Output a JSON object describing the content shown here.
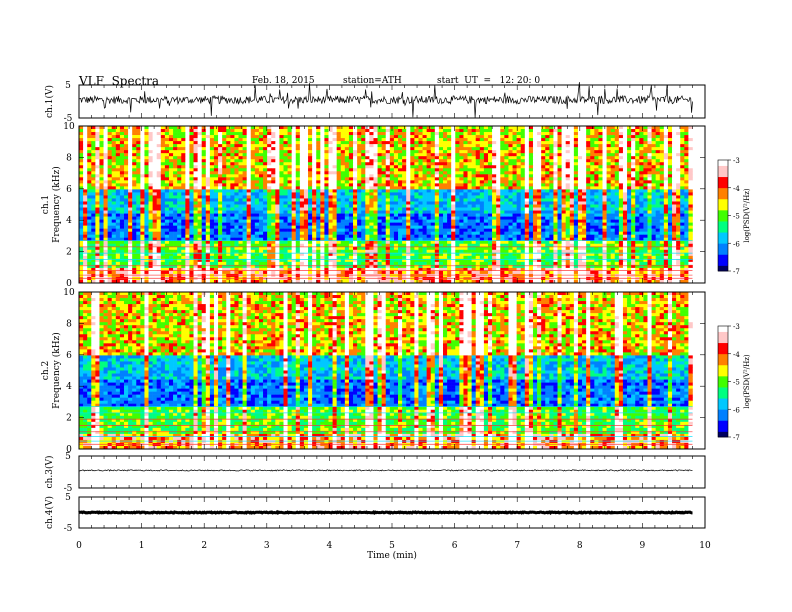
{
  "header": {
    "title": "VLF  Spectra",
    "date": "Feb. 18, 2015",
    "station": "station=ATH",
    "start": "start  UT  =   12: 20: 0"
  },
  "colors": {
    "spectrogram_scale": [
      "#000060",
      "#0000ff",
      "#0080ff",
      "#00c8ff",
      "#00ff80",
      "#40ff00",
      "#ffff00",
      "#ff8000",
      "#ff0000",
      "#ffc8c8",
      "#ffffff"
    ],
    "trace": "#000000"
  },
  "chart_data": [
    {
      "type": "line",
      "name": "ch.1",
      "ylabel": "ch.1(V)",
      "ylim": [
        -5,
        5
      ],
      "yticks": [
        "5",
        "-5"
      ],
      "description_values": {
        "x": [
          0,
          9.8
        ],
        "baseline": 0.5,
        "noise_amplitude": 1.2
      }
    },
    {
      "type": "heatmap",
      "name": "ch.1",
      "ylabel_top": "ch.1",
      "ylabel": "Frequency  (kHz)",
      "ylim": [
        0,
        10
      ],
      "yticks": [
        "0",
        "2",
        "4",
        "6",
        "8",
        "10"
      ],
      "x": [
        0,
        9.8
      ],
      "colorbar": {
        "label": "log(PSD(V²/Hz)",
        "range": [
          -7,
          -3
        ],
        "ticks": [
          "-3",
          "-4",
          "-5",
          "-6",
          "-7"
        ]
      }
    },
    {
      "type": "heatmap",
      "name": "ch.2",
      "ylabel_top": "ch.2",
      "ylabel": "Frequency  (kHz)",
      "ylim": [
        0,
        10
      ],
      "yticks": [
        "0",
        "2",
        "4",
        "6",
        "8",
        "10"
      ],
      "x": [
        0,
        9.8
      ],
      "colorbar": {
        "label": "log(PSD(V²/Hz)",
        "range": [
          -7,
          -3
        ],
        "ticks": [
          "-3",
          "-4",
          "-5",
          "-6",
          "-7"
        ]
      }
    },
    {
      "type": "line",
      "name": "ch.3",
      "ylabel": "ch.3(V)",
      "ylim": [
        -5,
        5
      ],
      "yticks": [
        "5",
        "-5"
      ],
      "description_values": {
        "x": [
          0,
          9.8
        ],
        "baseline": 0.5,
        "noise_amplitude": 0.2
      }
    },
    {
      "type": "line",
      "name": "ch.4",
      "ylabel": "ch.4(V)",
      "ylim": [
        -5,
        5
      ],
      "yticks": [
        "5",
        "-5"
      ],
      "description_values": {
        "x": [
          0,
          9.8
        ],
        "baseline": 0.0,
        "noise_amplitude": 0.15
      }
    }
  ],
  "xaxis": {
    "label": "Time  (min)",
    "range": [
      0,
      10
    ],
    "ticks": [
      "0",
      "1",
      "2",
      "3",
      "4",
      "5",
      "6",
      "7",
      "8",
      "9",
      "10"
    ]
  }
}
